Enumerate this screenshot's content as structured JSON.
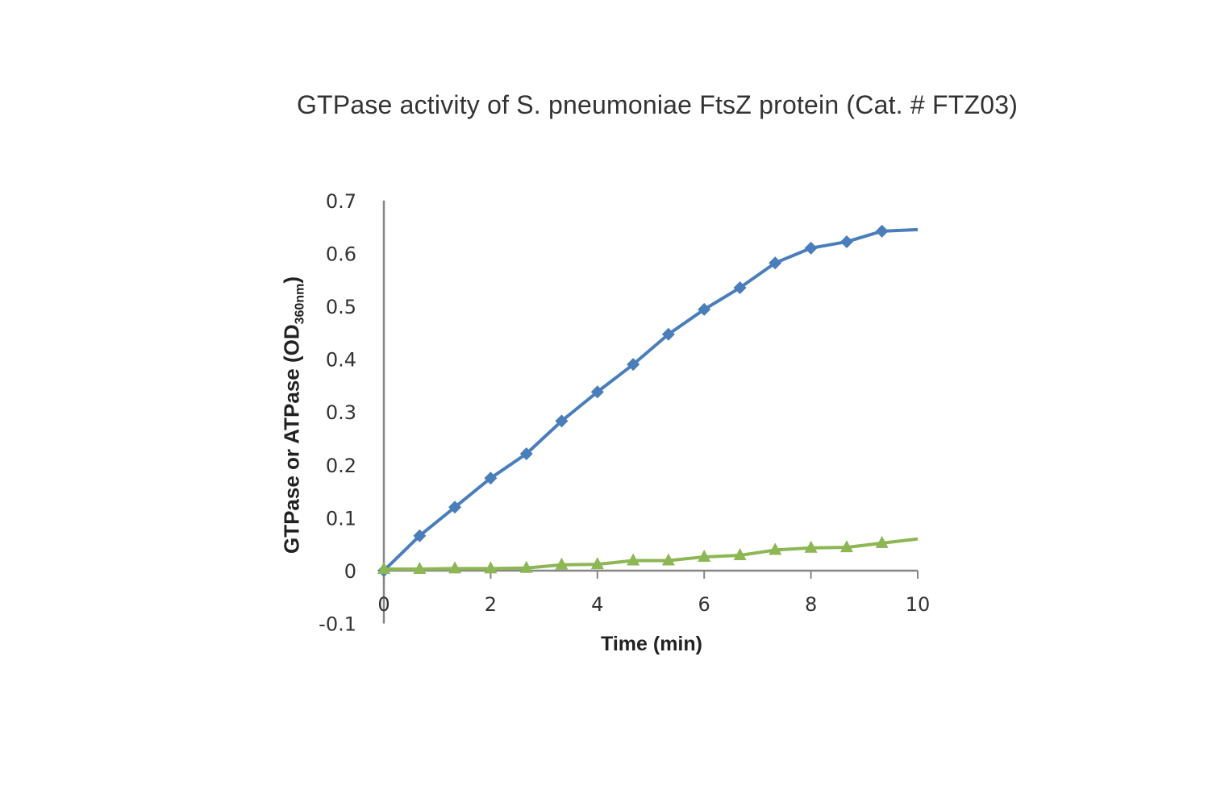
{
  "title": "GTPase activity of S. pneumoniae FtsZ protein (Cat. # FTZ03)",
  "ylabel": {
    "main": "GTPase or ATPase (OD",
    "sub": "360nm",
    "close": ")"
  },
  "xlabel": "Time (min)",
  "colors": {
    "series1": "#4a7ebb",
    "series2": "#8db654",
    "axis": "#868686"
  },
  "chart_data": {
    "type": "line",
    "title": "GTPase activity of S. pneumoniae FtsZ protein (Cat. # FTZ03)",
    "xlabel": "Time (min)",
    "ylabel": "GTPase or ATPase (OD360nm)",
    "xlim": [
      0,
      10
    ],
    "ylim": [
      -0.1,
      0.7
    ],
    "xticks": [
      0,
      2,
      4,
      6,
      8,
      10
    ],
    "yticks": [
      -0.1,
      0,
      0.1,
      0.2,
      0.3,
      0.4,
      0.5,
      0.6,
      0.7
    ],
    "grid": false,
    "legend": null,
    "series": [
      {
        "name": "GTPase (blue, diamond markers)",
        "marker": "diamond",
        "color": "#4a7ebb",
        "x": [
          0,
          0.67,
          1.33,
          2.0,
          2.67,
          3.33,
          4.0,
          4.67,
          5.33,
          6.0,
          6.67,
          7.33,
          8.0,
          8.67,
          9.33,
          10.0
        ],
        "values": [
          0,
          0.066,
          0.12,
          0.175,
          0.221,
          0.283,
          0.338,
          0.39,
          0.447,
          0.494,
          0.535,
          0.582,
          0.61,
          0.622,
          0.642,
          0.645
        ]
      },
      {
        "name": "ATPase (green, triangle markers)",
        "marker": "triangle",
        "color": "#8db654",
        "x": [
          0,
          0.67,
          1.33,
          2.0,
          2.67,
          3.33,
          4.0,
          4.67,
          5.33,
          6.0,
          6.67,
          7.33,
          8.0,
          8.67,
          9.33,
          10.0
        ],
        "values": [
          0.003,
          0.003,
          0.004,
          0.004,
          0.005,
          0.011,
          0.012,
          0.019,
          0.019,
          0.026,
          0.029,
          0.039,
          0.043,
          0.044,
          0.052,
          0.06
        ]
      }
    ]
  }
}
